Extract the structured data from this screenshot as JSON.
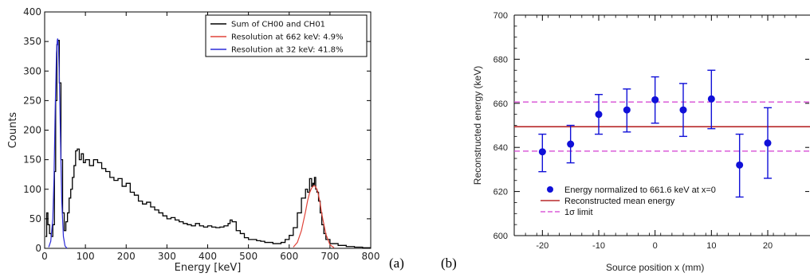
{
  "chart_data": [
    {
      "type": "line",
      "panel_label": "(a)",
      "xlabel": "Energy [keV]",
      "ylabel": "Counts",
      "xlim": [
        0,
        800
      ],
      "ylim": [
        0,
        400
      ],
      "xticks": [
        0,
        100,
        200,
        300,
        400,
        500,
        600,
        700,
        800
      ],
      "yticks": [
        0,
        50,
        100,
        150,
        200,
        250,
        300,
        350,
        400
      ],
      "legend_position": "top-right",
      "colors": {
        "sum": "#000000",
        "res662": "#e0443a",
        "res32": "#2b2bd8"
      },
      "series": [
        {
          "name": "Sum of CH00 and CH01",
          "color": "#000000",
          "x": [
            2,
            5,
            8,
            12,
            16,
            20,
            24,
            27,
            30,
            33,
            36,
            40,
            44,
            48,
            52,
            56,
            60,
            64,
            68,
            72,
            76,
            80,
            85,
            90,
            95,
            100,
            110,
            120,
            130,
            140,
            150,
            160,
            170,
            180,
            190,
            200,
            210,
            220,
            230,
            240,
            250,
            260,
            270,
            280,
            290,
            300,
            310,
            320,
            330,
            340,
            350,
            360,
            370,
            380,
            390,
            400,
            410,
            420,
            430,
            440,
            450,
            455,
            460,
            470,
            480,
            490,
            500,
            510,
            520,
            530,
            540,
            550,
            560,
            570,
            580,
            590,
            600,
            610,
            620,
            630,
            640,
            645,
            650,
            655,
            658,
            660,
            662,
            665,
            668,
            672,
            676,
            680,
            685,
            690,
            700,
            720,
            740,
            760,
            780,
            800
          ],
          "y": [
            20,
            60,
            40,
            25,
            20,
            40,
            130,
            250,
            345,
            352,
            280,
            150,
            60,
            30,
            45,
            60,
            85,
            100,
            120,
            140,
            165,
            168,
            150,
            160,
            145,
            150,
            140,
            150,
            145,
            135,
            130,
            120,
            115,
            118,
            105,
            110,
            95,
            90,
            80,
            75,
            78,
            70,
            65,
            60,
            55,
            50,
            52,
            48,
            45,
            42,
            40,
            38,
            42,
            38,
            36,
            38,
            36,
            35,
            36,
            38,
            42,
            48,
            45,
            30,
            25,
            18,
            15,
            15,
            13,
            12,
            10,
            10,
            8,
            8,
            10,
            15,
            22,
            35,
            60,
            85,
            100,
            95,
            118,
            105,
            110,
            108,
            120,
            100,
            95,
            80,
            60,
            40,
            25,
            15,
            8,
            5,
            3,
            2,
            1,
            1
          ]
        },
        {
          "name": "Resolution at 662 keV: 4.9%",
          "color": "#e0443a",
          "x": [
            610,
            620,
            630,
            640,
            645,
            650,
            655,
            660,
            662,
            665,
            670,
            675,
            680,
            690,
            700,
            710
          ],
          "y": [
            2,
            10,
            30,
            62,
            80,
            94,
            102,
            106,
            106,
            104,
            96,
            80,
            58,
            24,
            6,
            1
          ]
        },
        {
          "name": "Resolution at 32 keV: 41.8%",
          "color": "#2b2bd8",
          "x": [
            10,
            15,
            20,
            23,
            26,
            29,
            31,
            32,
            34,
            36,
            39,
            42,
            46,
            50,
            55
          ],
          "y": [
            2,
            12,
            50,
            120,
            240,
            330,
            352,
            355,
            340,
            290,
            180,
            80,
            20,
            4,
            0
          ]
        }
      ]
    },
    {
      "type": "scatter",
      "panel_label": "(b)",
      "xlabel": "Source position x (mm)",
      "ylabel": "Reconstructed energy (keV)",
      "xlim": [
        -25,
        25
      ],
      "ylim": [
        600,
        700
      ],
      "xticks": [
        -20,
        -10,
        0,
        10,
        20
      ],
      "xtick_labels": [
        "-20",
        "-10",
        "0",
        "10",
        "20"
      ],
      "yticks": [
        600,
        620,
        640,
        660,
        680,
        700
      ],
      "legend_position": "bottom-left",
      "colors": {
        "points": "#1010d8",
        "mean": "#b8292a",
        "limit": "#d33cd0"
      },
      "legend": [
        {
          "name": "Energy normalized to 661.6 keV at x=0",
          "kind": "marker"
        },
        {
          "name": "Reconstructed mean energy",
          "kind": "solid"
        },
        {
          "name": "1σ limit",
          "kind": "dashed"
        }
      ],
      "points": [
        {
          "x": -20,
          "y": 638,
          "lo": 629,
          "hi": 646
        },
        {
          "x": -15,
          "y": 641.5,
          "lo": 633,
          "hi": 650
        },
        {
          "x": -10,
          "y": 655,
          "lo": 646,
          "hi": 664
        },
        {
          "x": -5,
          "y": 657,
          "lo": 647,
          "hi": 666.5
        },
        {
          "x": 0,
          "y": 661.6,
          "lo": 651,
          "hi": 672
        },
        {
          "x": 5,
          "y": 657,
          "lo": 645,
          "hi": 669
        },
        {
          "x": 10,
          "y": 662,
          "lo": 648.5,
          "hi": 675
        },
        {
          "x": 15,
          "y": 632,
          "lo": 617.5,
          "hi": 646
        },
        {
          "x": 20,
          "y": 642,
          "lo": 626,
          "hi": 658
        }
      ],
      "mean_energy": 649.4,
      "sigma_upper": 660.6,
      "sigma_lower": 638.3
    }
  ]
}
